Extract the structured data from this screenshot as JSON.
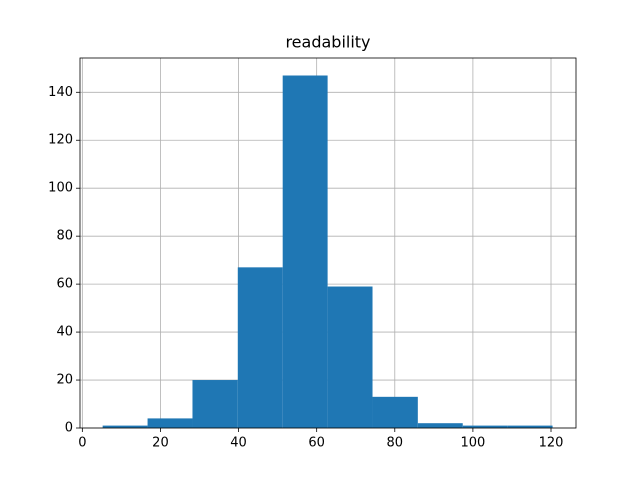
{
  "chart_data": {
    "type": "histogram",
    "title": "readability",
    "bins": [
      5.2,
      16.7,
      28.2,
      39.8,
      51.3,
      62.8,
      74.3,
      85.9,
      97.4,
      108.9,
      120.4
    ],
    "counts": [
      1,
      4,
      20,
      67,
      147,
      59,
      13,
      2,
      1,
      1
    ],
    "color": "#1f77b4",
    "xlim": [
      -0.6,
      126.4
    ],
    "xticks": [
      0,
      20,
      40,
      60,
      80,
      100,
      120
    ],
    "ylim": [
      0,
      154.3
    ],
    "yticks": [
      0,
      20,
      40,
      60,
      80,
      100,
      120,
      140
    ],
    "grid": true
  }
}
